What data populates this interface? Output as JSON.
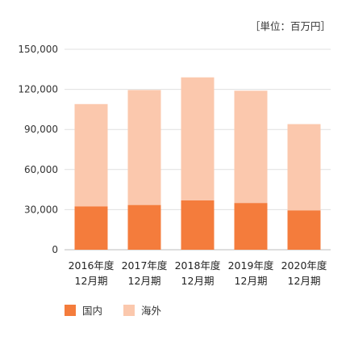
{
  "chart_data": {
    "type": "bar",
    "stacked": true,
    "unit_label": "［単位：百万円］",
    "categories": [
      [
        "2016年度",
        "12月期"
      ],
      [
        "2017年度",
        "12月期"
      ],
      [
        "2018年度",
        "12月期"
      ],
      [
        "2019年度",
        "12月期"
      ],
      [
        "2020年度",
        "12月期"
      ]
    ],
    "series": [
      {
        "name": "国内",
        "color": "#f47c3c",
        "values": [
          32500,
          33500,
          37000,
          35000,
          29500
        ]
      },
      {
        "name": "海外",
        "color": "#fbc8ad",
        "values": [
          76500,
          86000,
          92000,
          84000,
          64500
        ]
      }
    ],
    "ylim": [
      0,
      150000
    ],
    "yticks": [
      0,
      30000,
      60000,
      90000,
      120000,
      150000
    ],
    "ytick_labels": [
      "0",
      "30,000",
      "60,000",
      "90,000",
      "120,000",
      "150,000"
    ],
    "grid": true,
    "legend_position": "bottom-left"
  }
}
